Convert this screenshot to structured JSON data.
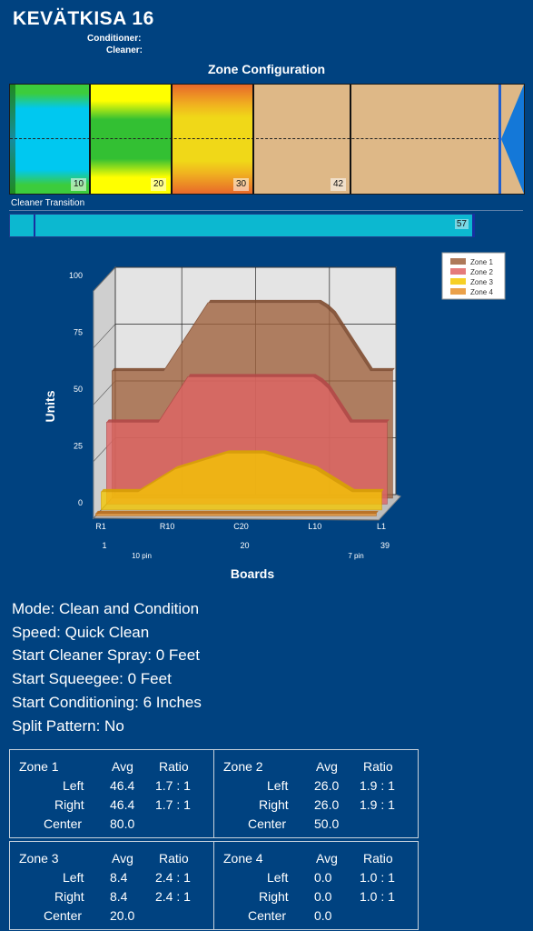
{
  "header": {
    "title": "KEVÄTKISA 16",
    "conditioner_label": "Conditioner:",
    "cleaner_label": "Cleaner:"
  },
  "zone_config": {
    "title": "Zone Configuration",
    "boundaries": [
      "10",
      "20",
      "30",
      "42"
    ]
  },
  "cleaner_transition": {
    "label": "Cleaner Transition",
    "value": "57"
  },
  "chart_data": {
    "type": "area",
    "ylabel": "Units",
    "xlabel": "Boards",
    "ylim": [
      0,
      100
    ],
    "y_ticks": [
      "0",
      "25",
      "50",
      "75",
      "100"
    ],
    "x_ticks": [
      "R1",
      "R10",
      "C20",
      "L10",
      "L1"
    ],
    "x_numbers": [
      "1",
      "20",
      "39"
    ],
    "x_annotations": [
      "10 pin",
      "7 pin"
    ],
    "legend_position": "top-right",
    "x": [
      1,
      2,
      3,
      4,
      5,
      6,
      7,
      8,
      9,
      10,
      11,
      12,
      13,
      14,
      15,
      16,
      17,
      18,
      19,
      20,
      21,
      22,
      23,
      24,
      25,
      26,
      27,
      28,
      29,
      30,
      31,
      32,
      33,
      34,
      35,
      36,
      37,
      38,
      39
    ],
    "series": [
      {
        "name": "Zone 1",
        "color": "#a0613c",
        "values": [
          56,
          56,
          56,
          56,
          56,
          56,
          56,
          56,
          61,
          66,
          71,
          76,
          81,
          86,
          86,
          86,
          86,
          86,
          86,
          86,
          86,
          86,
          86,
          86,
          86,
          86,
          86,
          86,
          86,
          84,
          81,
          76,
          71,
          66,
          61,
          56,
          56,
          56,
          56
        ]
      },
      {
        "name": "Zone 2",
        "color": "#e06464",
        "values": [
          36,
          36,
          36,
          36,
          36,
          36,
          36,
          36,
          41,
          46,
          51,
          56,
          56,
          56,
          56,
          56,
          56,
          56,
          56,
          56,
          56,
          56,
          56,
          56,
          56,
          56,
          56,
          56,
          56,
          54,
          51,
          46,
          41,
          36,
          36,
          36,
          36,
          36,
          36
        ]
      },
      {
        "name": "Zone 3",
        "color": "#f5c800",
        "values": [
          8,
          8,
          8,
          8,
          8,
          8,
          10,
          12,
          14,
          16,
          18,
          19,
          20,
          21,
          22,
          23,
          24,
          25,
          25,
          25,
          25,
          25,
          25,
          24,
          23,
          22,
          21,
          20,
          19,
          18,
          16,
          14,
          12,
          10,
          8,
          8,
          8,
          8,
          8
        ]
      },
      {
        "name": "Zone 4",
        "color": "#e8902a",
        "values": [
          1,
          1,
          1,
          1,
          1,
          1,
          1,
          1,
          1,
          1,
          1,
          1,
          1,
          1,
          1,
          1,
          1,
          1,
          1,
          1,
          1,
          1,
          1,
          1,
          1,
          1,
          1,
          1,
          1,
          1,
          1,
          1,
          1,
          1,
          1,
          1,
          1,
          1,
          1
        ]
      }
    ]
  },
  "settings": [
    "Mode: Clean and Condition",
    "Speed: Quick Clean",
    "Start Cleaner Spray: 0 Feet",
    "Start Squeegee: 0 Feet",
    "Start Conditioning: 6 Inches",
    "Split Pattern: No"
  ],
  "zone_stats_headers": {
    "avg": "Avg",
    "ratio": "Ratio",
    "left": "Left",
    "right": "Right",
    "center": "Center"
  },
  "zones": [
    {
      "name": "Zone 1",
      "left_avg": "46.4",
      "left_ratio": "1.7 : 1",
      "right_avg": "46.4",
      "right_ratio": "1.7 : 1",
      "center_avg": "80.0"
    },
    {
      "name": "Zone 2",
      "left_avg": "26.0",
      "left_ratio": "1.9 : 1",
      "right_avg": "26.0",
      "right_ratio": "1.9 : 1",
      "center_avg": "50.0"
    },
    {
      "name": "Zone 3",
      "left_avg": "8.4",
      "left_ratio": "2.4 : 1",
      "right_avg": "8.4",
      "right_ratio": "2.4 : 1",
      "center_avg": "20.0"
    },
    {
      "name": "Zone 4",
      "left_avg": "0.0",
      "left_ratio": "1.0 : 1",
      "right_avg": "0.0",
      "right_ratio": "1.0 : 1",
      "center_avg": "0.0"
    }
  ]
}
